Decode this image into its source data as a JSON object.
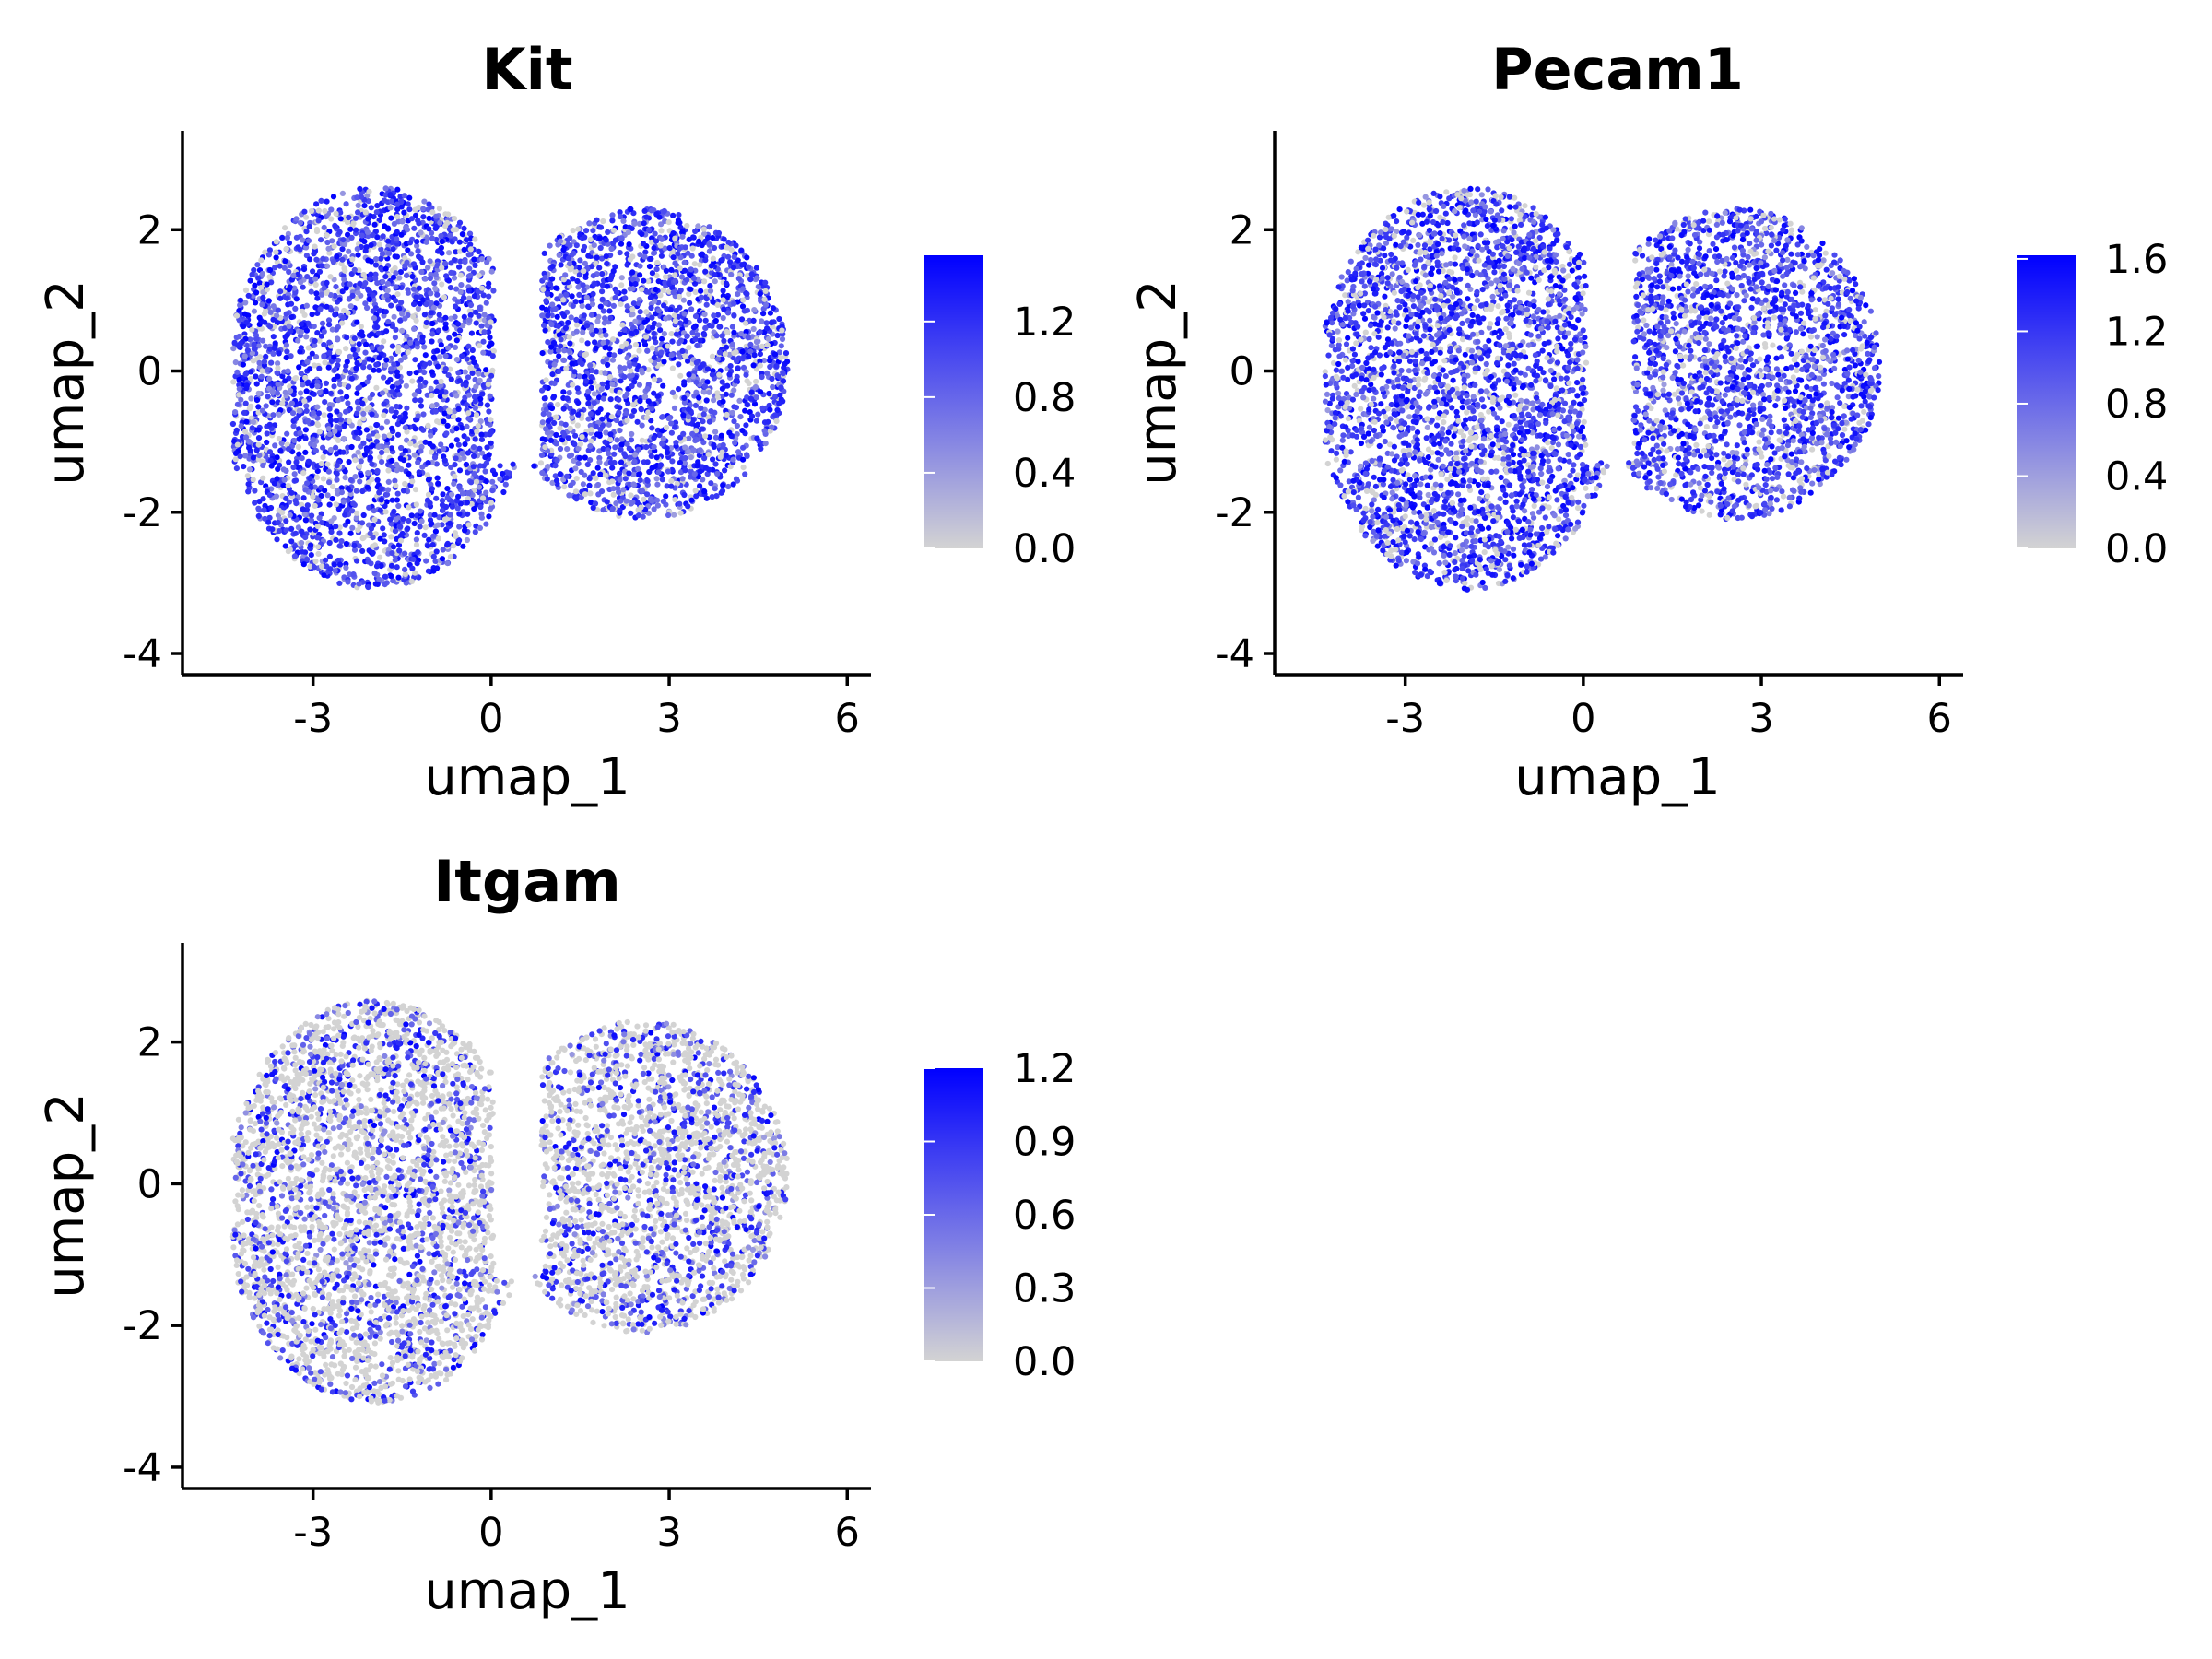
{
  "chart_data": [
    {
      "type": "scatter",
      "title": "Kit",
      "xlabel": "umap_1",
      "ylabel": "umap_2",
      "xlim": [
        -5.2,
        6.4
      ],
      "ylim": [
        -4.3,
        3.4
      ],
      "xticks": [
        -3,
        0,
        3,
        6
      ],
      "yticks": [
        -4,
        -2,
        0,
        2
      ],
      "xtick_labels": [
        "-3",
        "0",
        "3",
        "6"
      ],
      "ytick_labels": [
        "-4",
        "-2",
        "0",
        "2"
      ],
      "grid": false,
      "legend": "right",
      "color_low": "#d3d3d3",
      "color_high": "#0000ff",
      "expr_max": 1.55,
      "expressed_fraction": 0.85,
      "seed": 11,
      "colorbar": {
        "ticks": [
          0.0,
          0.4,
          0.8,
          1.2
        ],
        "labels": [
          "0.0",
          "0.4",
          "0.8",
          "1.2"
        ]
      }
    },
    {
      "type": "scatter",
      "title": "Pecam1",
      "xlabel": "umap_1",
      "ylabel": "umap_2",
      "xlim": [
        -5.2,
        6.4
      ],
      "ylim": [
        -4.3,
        3.4
      ],
      "xticks": [
        -3,
        0,
        3,
        6
      ],
      "yticks": [
        -4,
        -2,
        0,
        2
      ],
      "xtick_labels": [
        "-3",
        "0",
        "3",
        "6"
      ],
      "ytick_labels": [
        "-4",
        "-2",
        "0",
        "2"
      ],
      "grid": false,
      "legend": "right",
      "color_low": "#d3d3d3",
      "color_high": "#0000ff",
      "expr_max": 1.62,
      "expressed_fraction": 0.82,
      "seed": 23,
      "colorbar": {
        "ticks": [
          0.0,
          0.4,
          0.8,
          1.2,
          1.6
        ],
        "labels": [
          "0.0",
          "0.4",
          "0.8",
          "1.2",
          "1.6"
        ]
      }
    },
    {
      "type": "scatter",
      "title": "Itgam",
      "xlabel": "umap_1",
      "ylabel": "umap_2",
      "xlim": [
        -5.2,
        6.4
      ],
      "ylim": [
        -4.3,
        3.4
      ],
      "xticks": [
        -3,
        0,
        3,
        6
      ],
      "yticks": [
        -4,
        -2,
        0,
        2
      ],
      "xtick_labels": [
        "-3",
        "0",
        "3",
        "6"
      ],
      "ytick_labels": [
        "-4",
        "-2",
        "0",
        "2"
      ],
      "grid": false,
      "legend": "right",
      "color_low": "#d3d3d3",
      "color_high": "#0000ff",
      "expr_max": 1.2,
      "expressed_fraction": 0.35,
      "seed": 37,
      "colorbar": {
        "ticks": [
          0.0,
          0.3,
          0.6,
          0.9,
          1.2
        ],
        "labels": [
          "0.0",
          "0.3",
          "0.6",
          "0.9",
          "1.2"
        ]
      }
    }
  ]
}
